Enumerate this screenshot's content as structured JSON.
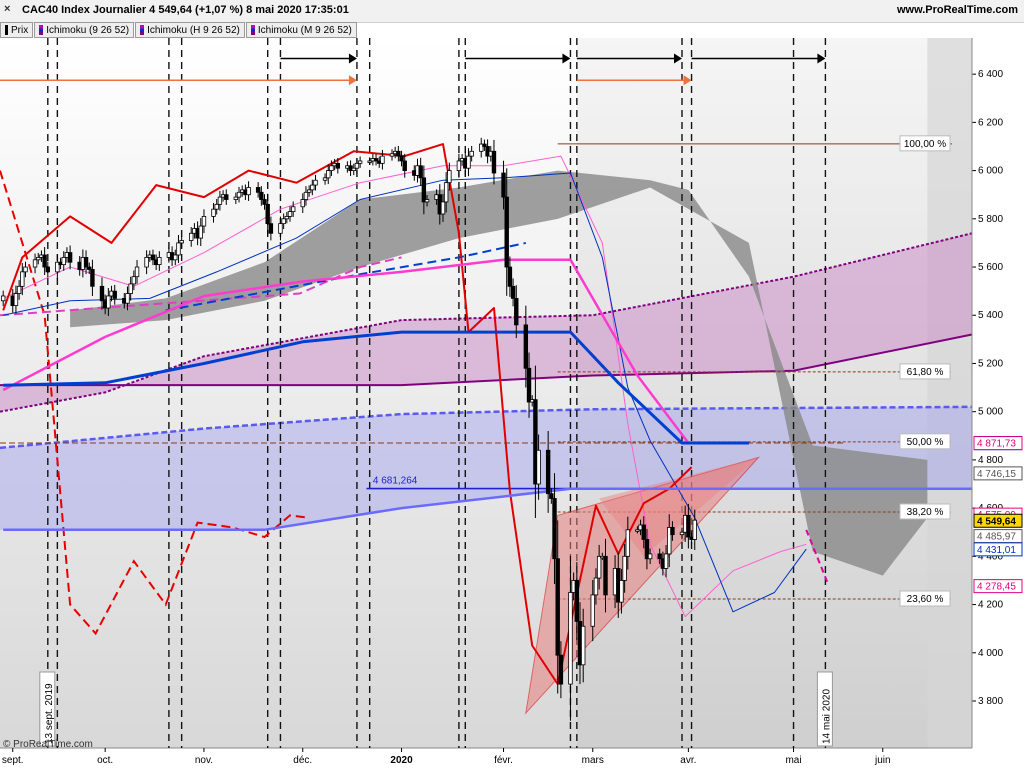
{
  "window": {
    "title": "CAC40 Index Journalier 4 549,64 (+1,07 %) 8 mai 2020 17:35:01",
    "brand": "www.ProRealTime.com",
    "credit": "© ProRealTime.com"
  },
  "legend": [
    {
      "label": "Prix",
      "icon": "price-swatch"
    },
    {
      "label": "Ichimoku (9 26 52)",
      "icon": "ichimoku-swatch"
    },
    {
      "label": "Ichimoku (H 9 26 52)",
      "icon": "ichimoku-swatch"
    },
    {
      "label": "Ichimoku (M 9 26 52)",
      "icon": "ichimoku-swatch"
    }
  ],
  "colors": {
    "bg_top": "#ffffff",
    "bg_bottom": "#d8d8d8",
    "future_zone": "#d5d5d5",
    "tenkan": "#e00000",
    "tenkan_light": "#ff60d0",
    "kijun": "#0030c0",
    "weekly_tenkan": "#ff3ad0",
    "weekly_kijun": "#0040d0",
    "monthly_tenkan": "#e80000",
    "monthly_kijun": "#6a6aff",
    "kumo_daily": "#888888",
    "kumo_weekly": "#cc90c8",
    "kumo_monthly": "#a0a0f0",
    "fib": "#8b3a1a",
    "triangle": "#e88080"
  },
  "chart_data": {
    "type": "candlestick",
    "title": "CAC40 Index Journalier 4 549,64 (+1,07 %) 8 mai 2020 17:35:01",
    "y_ticks": [
      3800,
      4000,
      4200,
      4400,
      4600,
      4800,
      5000,
      5200,
      5400,
      5600,
      5800,
      6000,
      6200,
      6400
    ],
    "y_tick_labels": [
      "3 800",
      "4 000",
      "4 200",
      "4 400",
      "4 600",
      "4 800",
      "5 000",
      "5 200",
      "5 400",
      "5 600",
      "5 800",
      "6 000",
      "6 200",
      "6 400"
    ],
    "ylim": [
      3605,
      6550
    ],
    "x_ticks": [
      {
        "label": "sept.",
        "date": "2019-09-02"
      },
      {
        "label": "oct.",
        "date": "2019-10-01"
      },
      {
        "label": "nov.",
        "date": "2019-11-01"
      },
      {
        "label": "déc.",
        "date": "2019-12-02"
      },
      {
        "label": "2020",
        "date": "2020-01-02",
        "bold": true
      },
      {
        "label": "févr.",
        "date": "2020-02-03"
      },
      {
        "label": "mars",
        "date": "2020-03-02"
      },
      {
        "label": "avr.",
        "date": "2020-04-01"
      },
      {
        "label": "mai",
        "date": "2020-05-04"
      },
      {
        "label": "juin",
        "date": "2020-06-01"
      }
    ],
    "xlim": [
      "2019-08-29",
      "2020-06-29"
    ],
    "vertical_date_labels": [
      {
        "text": "13 sept. 2019",
        "date": "2019-09-13"
      },
      {
        "text": "14 mai 2020",
        "date": "2020-05-14"
      }
    ],
    "fibonacci": [
      {
        "label": "100,00 %",
        "value": 6111
      },
      {
        "label": "61,80 %",
        "value": 5165
      },
      {
        "label": "50,00 %",
        "value": 4875
      },
      {
        "label": "38,20 %",
        "value": 4584
      },
      {
        "label": "23,60 %",
        "value": 4223
      }
    ],
    "level_line": {
      "label": "4 681,264",
      "value": 4681.264
    },
    "price_tags": [
      {
        "text": "4 871,73",
        "value": 4871.73,
        "color": "#0030c0"
      },
      {
        "text": "4 871,73",
        "value": 4871.73,
        "color": "#0030c0"
      },
      {
        "text": "4 871,73",
        "value": 4871.73,
        "color": "#e00080"
      },
      {
        "text": "4 746,15",
        "value": 4746.15,
        "color": "#555555"
      },
      {
        "text": "4 575,09",
        "value": 4575.09,
        "color": "#e00080"
      },
      {
        "text": "4 549,64",
        "value": 4549.64,
        "color": "#000000",
        "highlight": true
      },
      {
        "text": "4 485,97",
        "value": 4485.97,
        "color": "#555555"
      },
      {
        "text": "4 431,01",
        "value": 4431.01,
        "color": "#0030c0"
      },
      {
        "text": "4 278,45",
        "value": 4278.45,
        "color": "#e00080"
      }
    ],
    "weekly_markers": [
      "2019-09-13",
      "2019-09-16",
      "2019-10-21",
      "2019-10-25",
      "2019-11-21",
      "2019-11-25",
      "2019-12-19",
      "2019-12-23",
      "2020-01-20",
      "2020-01-22",
      "2020-02-24",
      "2020-02-26",
      "2020-03-30",
      "2020-04-02",
      "2020-05-04",
      "2020-05-14"
    ],
    "arrows": [
      {
        "from": "2020-01-22",
        "to": "2020-02-24",
        "y": 6465,
        "color": "#000000"
      },
      {
        "from": "2020-02-26",
        "to": "2020-03-30",
        "y": 6465,
        "color": "#000000"
      },
      {
        "from": "2020-04-02",
        "to": "2020-05-14",
        "y": 6465,
        "color": "#000000"
      },
      {
        "from": "2019-11-25",
        "to": "2019-12-19",
        "y": 6465,
        "color": "#000000"
      },
      {
        "from": "2019-08-29",
        "to": "2019-12-19",
        "y": 6375,
        "color": "#f07040"
      },
      {
        "from": "2020-02-26",
        "to": "2020-04-02",
        "y": 6375,
        "color": "#f07040"
      }
    ],
    "candles": {
      "start": "2019-08-30",
      "close": [
        5480,
        5440,
        5490,
        5520,
        5580,
        5600,
        5630,
        5640,
        5650,
        5600,
        5580,
        5620,
        5610,
        5640,
        5660,
        5620,
        5590,
        5640,
        5600,
        5590,
        5520,
        5460,
        5430,
        5480,
        5500,
        5470,
        5450,
        5490,
        5530,
        5560,
        5600,
        5640,
        5650,
        5630,
        5610,
        5640,
        5660,
        5630,
        5650,
        5700,
        5710,
        5740,
        5760,
        5720,
        5770,
        5810,
        5840,
        5860,
        5890,
        5900,
        5880,
        5890,
        5910,
        5920,
        5900,
        5930,
        5910,
        5880,
        5860,
        5780,
        5740,
        5780,
        5800,
        5810,
        5830,
        5850,
        5880,
        5910,
        5920,
        5940,
        5960,
        5970,
        6000,
        6020,
        6030,
        6010,
        6020,
        6000,
        6010,
        6030,
        6040,
        6040,
        6050,
        6040,
        6030,
        6060,
        6070,
        6080,
        6060,
        6040,
        6000,
        5980,
        6020,
        5970,
        5870,
        5880,
        5900,
        5820,
        5870,
        5950,
        6000,
        6040,
        6050,
        6010,
        6060,
        6080,
        6110,
        6100,
        6060,
        6080,
        5990,
        5890,
        5600,
        5520,
        5470,
        5360,
        5180,
        5040,
        5050,
        4700,
        4840,
        4660,
        4640,
        4390,
        3990,
        3870,
        4250,
        4300,
        4130,
        3950,
        4110,
        4240,
        4310,
        4400,
        4400,
        4240,
        4350,
        4210,
        4300,
        4400,
        4510,
        4510,
        4530,
        4470,
        4390,
        4410,
        4390,
        4350,
        4410,
        4520,
        4490,
        4500,
        4570,
        4480,
        4470,
        4550
      ]
    },
    "series": [
      {
        "name": "Tenkan (9)",
        "style": "solid",
        "color": "#ff60d0",
        "x": [
          "2019-08-30",
          "2019-09-20",
          "2019-10-10",
          "2019-11-01",
          "2019-11-25",
          "2019-12-20",
          "2020-01-15",
          "2020-02-03",
          "2020-02-21",
          "2020-03-05",
          "2020-03-13",
          "2020-03-20",
          "2020-03-31",
          "2020-04-15",
          "2020-04-30",
          "2020-05-08"
        ],
        "y": [
          5470,
          5600,
          5520,
          5660,
          5840,
          5950,
          6020,
          6020,
          6060,
          5700,
          4950,
          4450,
          4150,
          4340,
          4420,
          4450
        ]
      },
      {
        "name": "Kijun (26)",
        "style": "solid",
        "color": "#0030c0",
        "x": [
          "2019-08-30",
          "2019-09-20",
          "2019-10-15",
          "2019-11-05",
          "2019-11-30",
          "2019-12-20",
          "2020-01-15",
          "2020-02-03",
          "2020-02-24",
          "2020-03-05",
          "2020-03-13",
          "2020-03-20",
          "2020-04-03",
          "2020-04-15",
          "2020-04-28",
          "2020-05-08"
        ],
        "y": [
          5400,
          5460,
          5470,
          5580,
          5720,
          5880,
          5960,
          5970,
          5990,
          5640,
          5100,
          4880,
          4560,
          4170,
          4250,
          4430
        ]
      },
      {
        "name": "Chikou (26)",
        "style": "solid",
        "color": "#e00000",
        "x": [
          "2019-08-30",
          "2019-09-05",
          "2019-09-20",
          "2019-10-03",
          "2019-10-17",
          "2019-11-01",
          "2019-11-15",
          "2019-11-30",
          "2019-12-18",
          "2020-01-03",
          "2020-01-15",
          "2020-01-20",
          "2020-01-23",
          "2020-01-31",
          "2020-02-05",
          "2020-02-12",
          "2020-02-20",
          "2020-03-03",
          "2020-03-10",
          "2020-03-18",
          "2020-03-26",
          "2020-04-02"
        ],
        "y": [
          5420,
          5640,
          5810,
          5700,
          5940,
          5890,
          6000,
          5950,
          6080,
          6060,
          6110,
          5740,
          5330,
          5430,
          4670,
          4030,
          3870,
          4610,
          4410,
          4620,
          4680,
          4770
        ]
      },
      {
        "name": "Weekly Tenkan",
        "style": "solid",
        "color": "#ff3ad0",
        "x": [
          "2019-08-30",
          "2019-10-01",
          "2019-11-01",
          "2019-12-02",
          "2020-01-02",
          "2020-02-03",
          "2020-02-24",
          "2020-03-16",
          "2020-04-01"
        ],
        "y": [
          5090,
          5310,
          5480,
          5540,
          5580,
          5630,
          5630,
          5150,
          4870
        ]
      },
      {
        "name": "Weekly Kijun",
        "style": "solid",
        "color": "#0040d0",
        "x": [
          "2019-08-30",
          "2019-10-01",
          "2019-11-01",
          "2019-12-02",
          "2020-01-02",
          "2020-02-24",
          "2020-03-10",
          "2020-03-30",
          "2020-04-20"
        ],
        "y": [
          5110,
          5120,
          5200,
          5290,
          5330,
          5330,
          5120,
          4870,
          4870
        ]
      },
      {
        "name": "Monthly Kijun",
        "style": "solid",
        "color": "#6a6aff",
        "x": [
          "2019-08-30",
          "2019-11-20",
          "2020-01-02",
          "2020-02-24",
          "2020-06-29"
        ],
        "y": [
          4510,
          4510,
          4600,
          4680,
          4680
        ]
      }
    ]
  }
}
